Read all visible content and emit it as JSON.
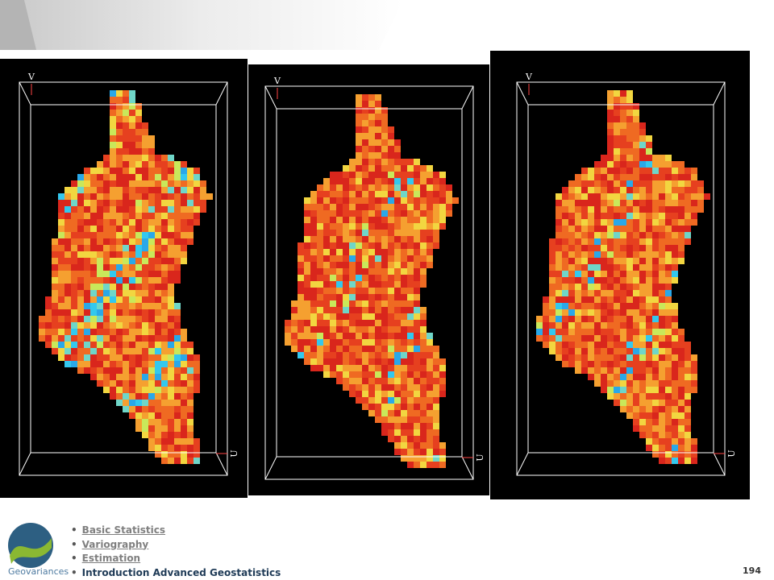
{
  "nav": [
    "Basic Statistics",
    "Variography",
    "Estimation",
    "Introduction Advanced Geostatistics"
  ],
  "page_number": "194",
  "logo": "Geovariances",
  "panels": [
    {
      "axis_v": "V",
      "axis_u": "U"
    },
    {
      "axis_v": "V",
      "axis_u": "U"
    },
    {
      "axis_v": "V",
      "axis_u": "U"
    }
  ]
}
